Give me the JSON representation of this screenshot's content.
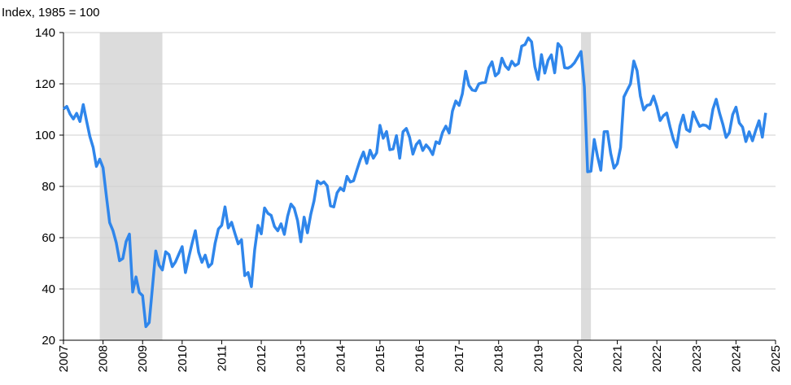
{
  "chart_data": {
    "type": "line",
    "y_label": "Index, 1985 = 100",
    "color": "#2f86eb",
    "shade_color": "#dcdcdc",
    "grid": true,
    "shaded_periods": [
      [
        2007.917,
        2009.5
      ],
      [
        2020.083,
        2020.333
      ]
    ],
    "xlim": [
      2007,
      2025
    ],
    "xticks": [
      2007,
      2008,
      2009,
      2010,
      2011,
      2012,
      2013,
      2014,
      2015,
      2016,
      2017,
      2018,
      2019,
      2020,
      2021,
      2022,
      2023,
      2024,
      2025
    ],
    "ylim": [
      20,
      140
    ],
    "yticks": [
      20,
      40,
      60,
      80,
      100,
      120,
      140
    ],
    "x": [
      2007.0,
      2007.083,
      2007.167,
      2007.25,
      2007.333,
      2007.417,
      2007.5,
      2007.583,
      2007.667,
      2007.75,
      2007.833,
      2007.917,
      2008.0,
      2008.083,
      2008.167,
      2008.25,
      2008.333,
      2008.417,
      2008.5,
      2008.583,
      2008.667,
      2008.75,
      2008.833,
      2008.917,
      2009.0,
      2009.083,
      2009.167,
      2009.25,
      2009.333,
      2009.417,
      2009.5,
      2009.583,
      2009.667,
      2009.75,
      2009.833,
      2009.917,
      2010.0,
      2010.083,
      2010.167,
      2010.25,
      2010.333,
      2010.417,
      2010.5,
      2010.583,
      2010.667,
      2010.75,
      2010.833,
      2010.917,
      2011.0,
      2011.083,
      2011.167,
      2011.25,
      2011.333,
      2011.417,
      2011.5,
      2011.583,
      2011.667,
      2011.75,
      2011.833,
      2011.917,
      2012.0,
      2012.083,
      2012.167,
      2012.25,
      2012.333,
      2012.417,
      2012.5,
      2012.583,
      2012.667,
      2012.75,
      2012.833,
      2012.917,
      2013.0,
      2013.083,
      2013.167,
      2013.25,
      2013.333,
      2013.417,
      2013.5,
      2013.583,
      2013.667,
      2013.75,
      2013.833,
      2013.917,
      2014.0,
      2014.083,
      2014.167,
      2014.25,
      2014.333,
      2014.417,
      2014.5,
      2014.583,
      2014.667,
      2014.75,
      2014.833,
      2014.917,
      2015.0,
      2015.083,
      2015.167,
      2015.25,
      2015.333,
      2015.417,
      2015.5,
      2015.583,
      2015.667,
      2015.75,
      2015.833,
      2015.917,
      2016.0,
      2016.083,
      2016.167,
      2016.25,
      2016.333,
      2016.417,
      2016.5,
      2016.583,
      2016.667,
      2016.75,
      2016.833,
      2016.917,
      2017.0,
      2017.083,
      2017.167,
      2017.25,
      2017.333,
      2017.417,
      2017.5,
      2017.583,
      2017.667,
      2017.75,
      2017.833,
      2017.917,
      2018.0,
      2018.083,
      2018.167,
      2018.25,
      2018.333,
      2018.417,
      2018.5,
      2018.583,
      2018.667,
      2018.75,
      2018.833,
      2018.917,
      2019.0,
      2019.083,
      2019.167,
      2019.25,
      2019.333,
      2019.417,
      2019.5,
      2019.583,
      2019.667,
      2019.75,
      2019.833,
      2019.917,
      2020.0,
      2020.083,
      2020.167,
      2020.25,
      2020.333,
      2020.417,
      2020.5,
      2020.583,
      2020.667,
      2020.75,
      2020.833,
      2020.917,
      2021.0,
      2021.083,
      2021.167,
      2021.25,
      2021.333,
      2021.417,
      2021.5,
      2021.583,
      2021.667,
      2021.75,
      2021.833,
      2021.917,
      2022.0,
      2022.083,
      2022.167,
      2022.25,
      2022.333,
      2022.417,
      2022.5,
      2022.583,
      2022.667,
      2022.75,
      2022.833,
      2022.917,
      2023.0,
      2023.083,
      2023.167,
      2023.25,
      2023.333,
      2023.417,
      2023.5,
      2023.583,
      2023.667,
      2023.75,
      2023.833,
      2023.917,
      2024.0,
      2024.083,
      2024.167,
      2024.25,
      2024.333,
      2024.417,
      2024.5,
      2024.583,
      2024.667,
      2024.75
    ],
    "values": [
      110.2,
      111.2,
      108.2,
      106.3,
      108.5,
      105.3,
      111.9,
      105.6,
      99.5,
      95.2,
      87.8,
      90.6,
      87.3,
      76.4,
      65.9,
      62.8,
      58.1,
      51.0,
      51.9,
      58.5,
      61.4,
      38.8,
      44.7,
      38.6,
      37.4,
      25.3,
      26.9,
      40.8,
      54.8,
      49.3,
      47.4,
      54.5,
      53.4,
      48.7,
      50.6,
      53.6,
      56.5,
      46.4,
      52.3,
      57.7,
      62.7,
      54.3,
      50.4,
      53.2,
      48.6,
      49.9,
      57.8,
      63.4,
      64.8,
      72.0,
      63.8,
      66.0,
      61.7,
      57.6,
      59.2,
      45.2,
      46.4,
      40.9,
      55.2,
      64.8,
      61.5,
      71.6,
      69.5,
      68.7,
      64.4,
      62.7,
      65.4,
      61.3,
      68.4,
      73.1,
      71.5,
      66.7,
      58.4,
      68.0,
      61.9,
      69.0,
      74.3,
      82.1,
      81.0,
      81.8,
      80.2,
      72.4,
      72.0,
      77.5,
      79.4,
      78.3,
      83.9,
      81.7,
      82.2,
      86.4,
      90.3,
      93.4,
      89.0,
      94.1,
      91.0,
      93.1,
      103.8,
      98.8,
      101.4,
      94.3,
      94.6,
      99.8,
      91.0,
      101.3,
      102.6,
      99.1,
      92.6,
      96.3,
      97.8,
      94.0,
      96.2,
      94.7,
      92.4,
      97.4,
      96.7,
      101.1,
      103.5,
      100.8,
      109.4,
      113.3,
      111.6,
      116.1,
      124.9,
      119.4,
      117.6,
      117.3,
      120.0,
      120.4,
      120.6,
      126.2,
      128.6,
      123.1,
      124.3,
      130.0,
      127.0,
      125.6,
      128.8,
      127.1,
      127.9,
      134.7,
      135.3,
      137.9,
      136.4,
      126.6,
      121.7,
      131.4,
      124.2,
      129.2,
      131.3,
      124.3,
      135.7,
      134.2,
      126.3,
      126.1,
      126.8,
      128.2,
      130.4,
      132.6,
      118.8,
      85.7,
      85.9,
      98.3,
      91.7,
      86.3,
      101.3,
      101.4,
      92.9,
      87.1,
      88.9,
      95.2,
      114.9,
      117.5,
      120.0,
      128.9,
      125.1,
      115.2,
      109.8,
      111.6,
      111.9,
      115.2,
      111.1,
      105.7,
      107.6,
      108.6,
      103.2,
      98.4,
      95.3,
      103.6,
      107.8,
      102.2,
      101.4,
      109.0,
      106.0,
      103.4,
      104.0,
      103.7,
      102.5,
      110.1,
      114.0,
      108.7,
      104.3,
      99.1,
      101.0,
      108.0,
      110.9,
      104.8,
      103.1,
      97.5,
      101.3,
      97.8,
      101.9,
      105.6,
      99.2,
      108.7
    ]
  }
}
